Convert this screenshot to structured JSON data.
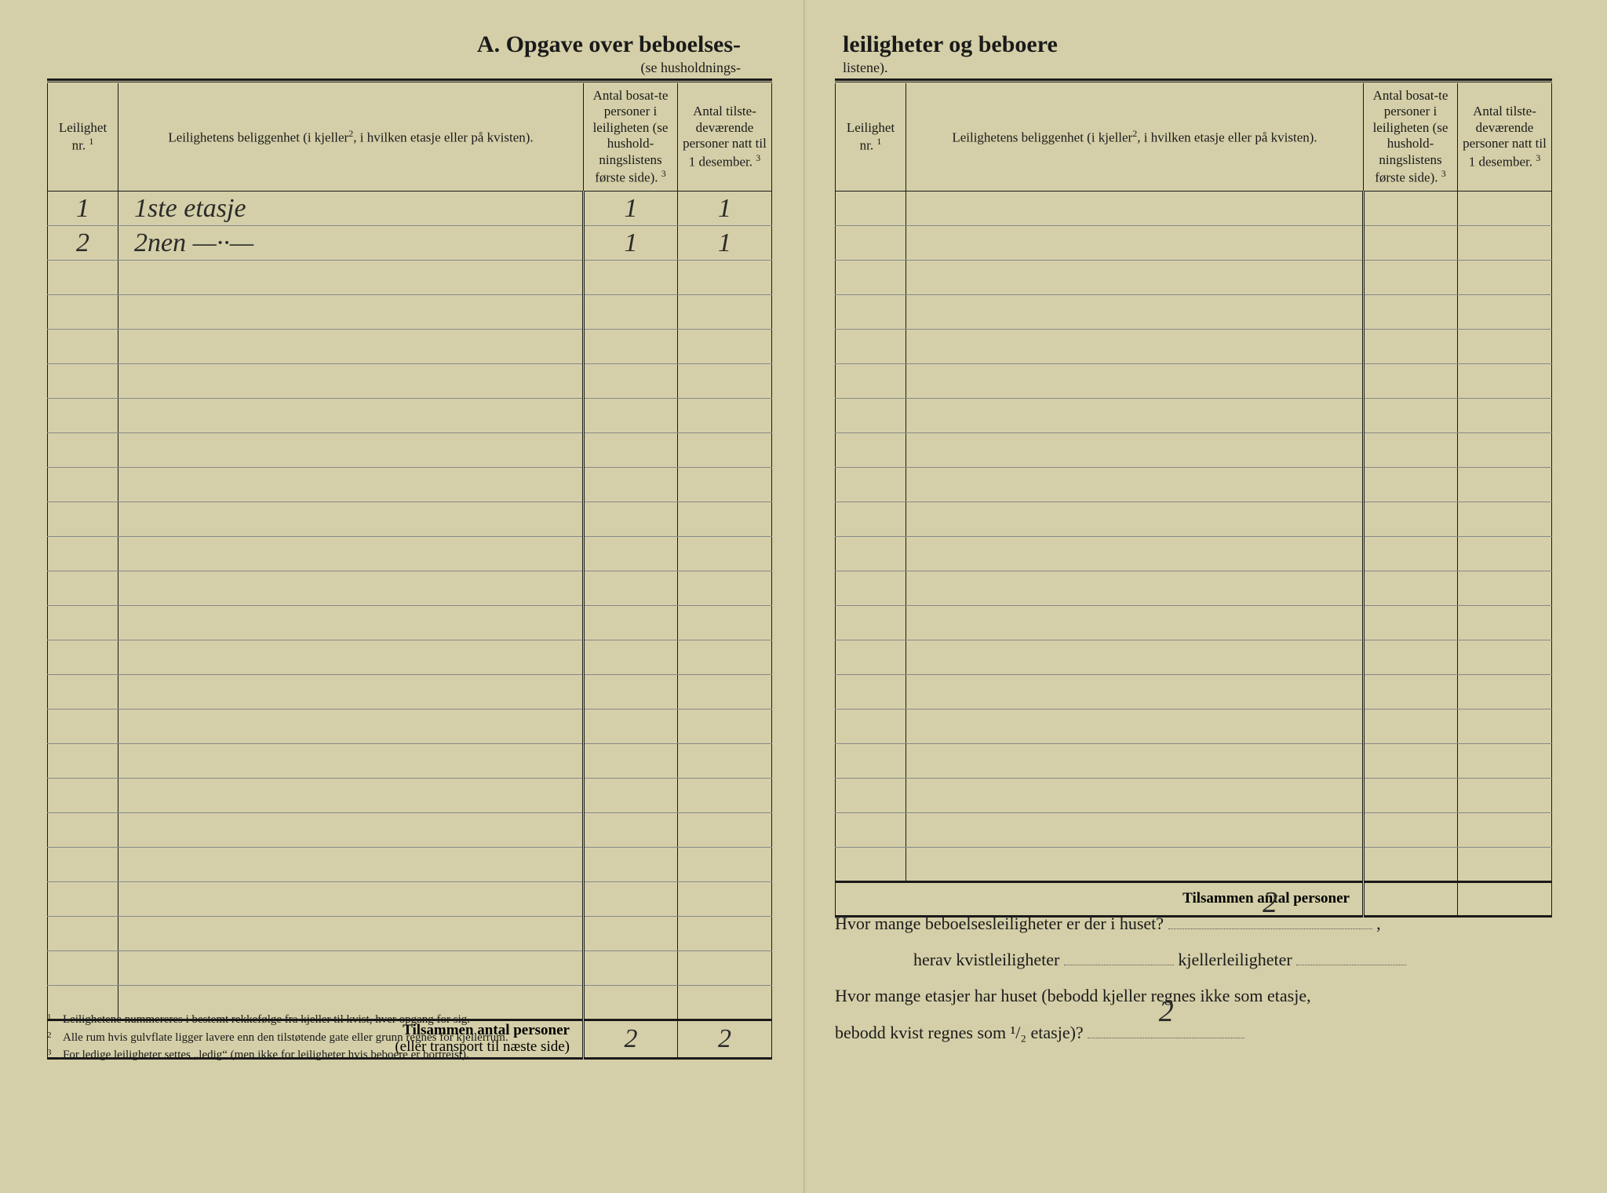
{
  "left": {
    "title": "A.  Opgave over beboelses-",
    "subtitle": "(se husholdnings-",
    "columns": {
      "nr": "Leilighet nr.",
      "nr_sup": "1",
      "loc": "Leilighetens beliggenhet (i kjeller",
      "loc_sup": "2",
      "loc_tail": ", i hvilken etasje eller på kvisten).",
      "c3a": "Antal bosat-te personer i leiligheten (se hushold-ningslistens første side).",
      "c3_sup": "3",
      "c4a": "Antal tilste-deværende personer natt til 1 desember.",
      "c4_sup": "3"
    },
    "rows": [
      {
        "nr": "1",
        "loc": "1ste etasje",
        "c3": "1",
        "c4": "1"
      },
      {
        "nr": "2",
        "loc": "2nen —··—",
        "c3": "1",
        "c4": "1"
      }
    ],
    "empty_rows": 22,
    "total_label_bold": "Tilsammen antal personer",
    "total_label_sub": "(eller transport til næste side)",
    "total_c3": "2",
    "total_c4": "2",
    "footnotes": [
      "Leilighetene nummereres i bestemt rekkefølge fra kjeller til kvist, hver opgang for sig.",
      "Alle rum hvis gulvflate ligger lavere enn den tilstøtende gate eller grunn regnes for kjellerrum.",
      "For ledige leiligheter settes „ledig“ (men ikke for leiligheter hvis beboere er bortreist)."
    ]
  },
  "right": {
    "title": "leiligheter og beboere",
    "subtitle": "listene).",
    "empty_rows": 20,
    "total_label": "Tilsammen antal personer",
    "q1_a": "Hvor mange beboelsesleiligheter er der i huset?",
    "q1_val": "2",
    "q2_a": "herav kvistleiligheter",
    "q2_b": "kjellerleiligheter",
    "q3_a": "Hvor mange etasjer har huset (bebodd kjeller regnes ikke som etasje,",
    "q3_b": "bebodd kvist regnes som ¹/₂ etasje)?",
    "q3_val": "2"
  },
  "colors": {
    "paper": "#d4cfa8",
    "ink": "#1a1a1a",
    "handwriting": "#2a2a2a",
    "rule_light": "#888"
  }
}
